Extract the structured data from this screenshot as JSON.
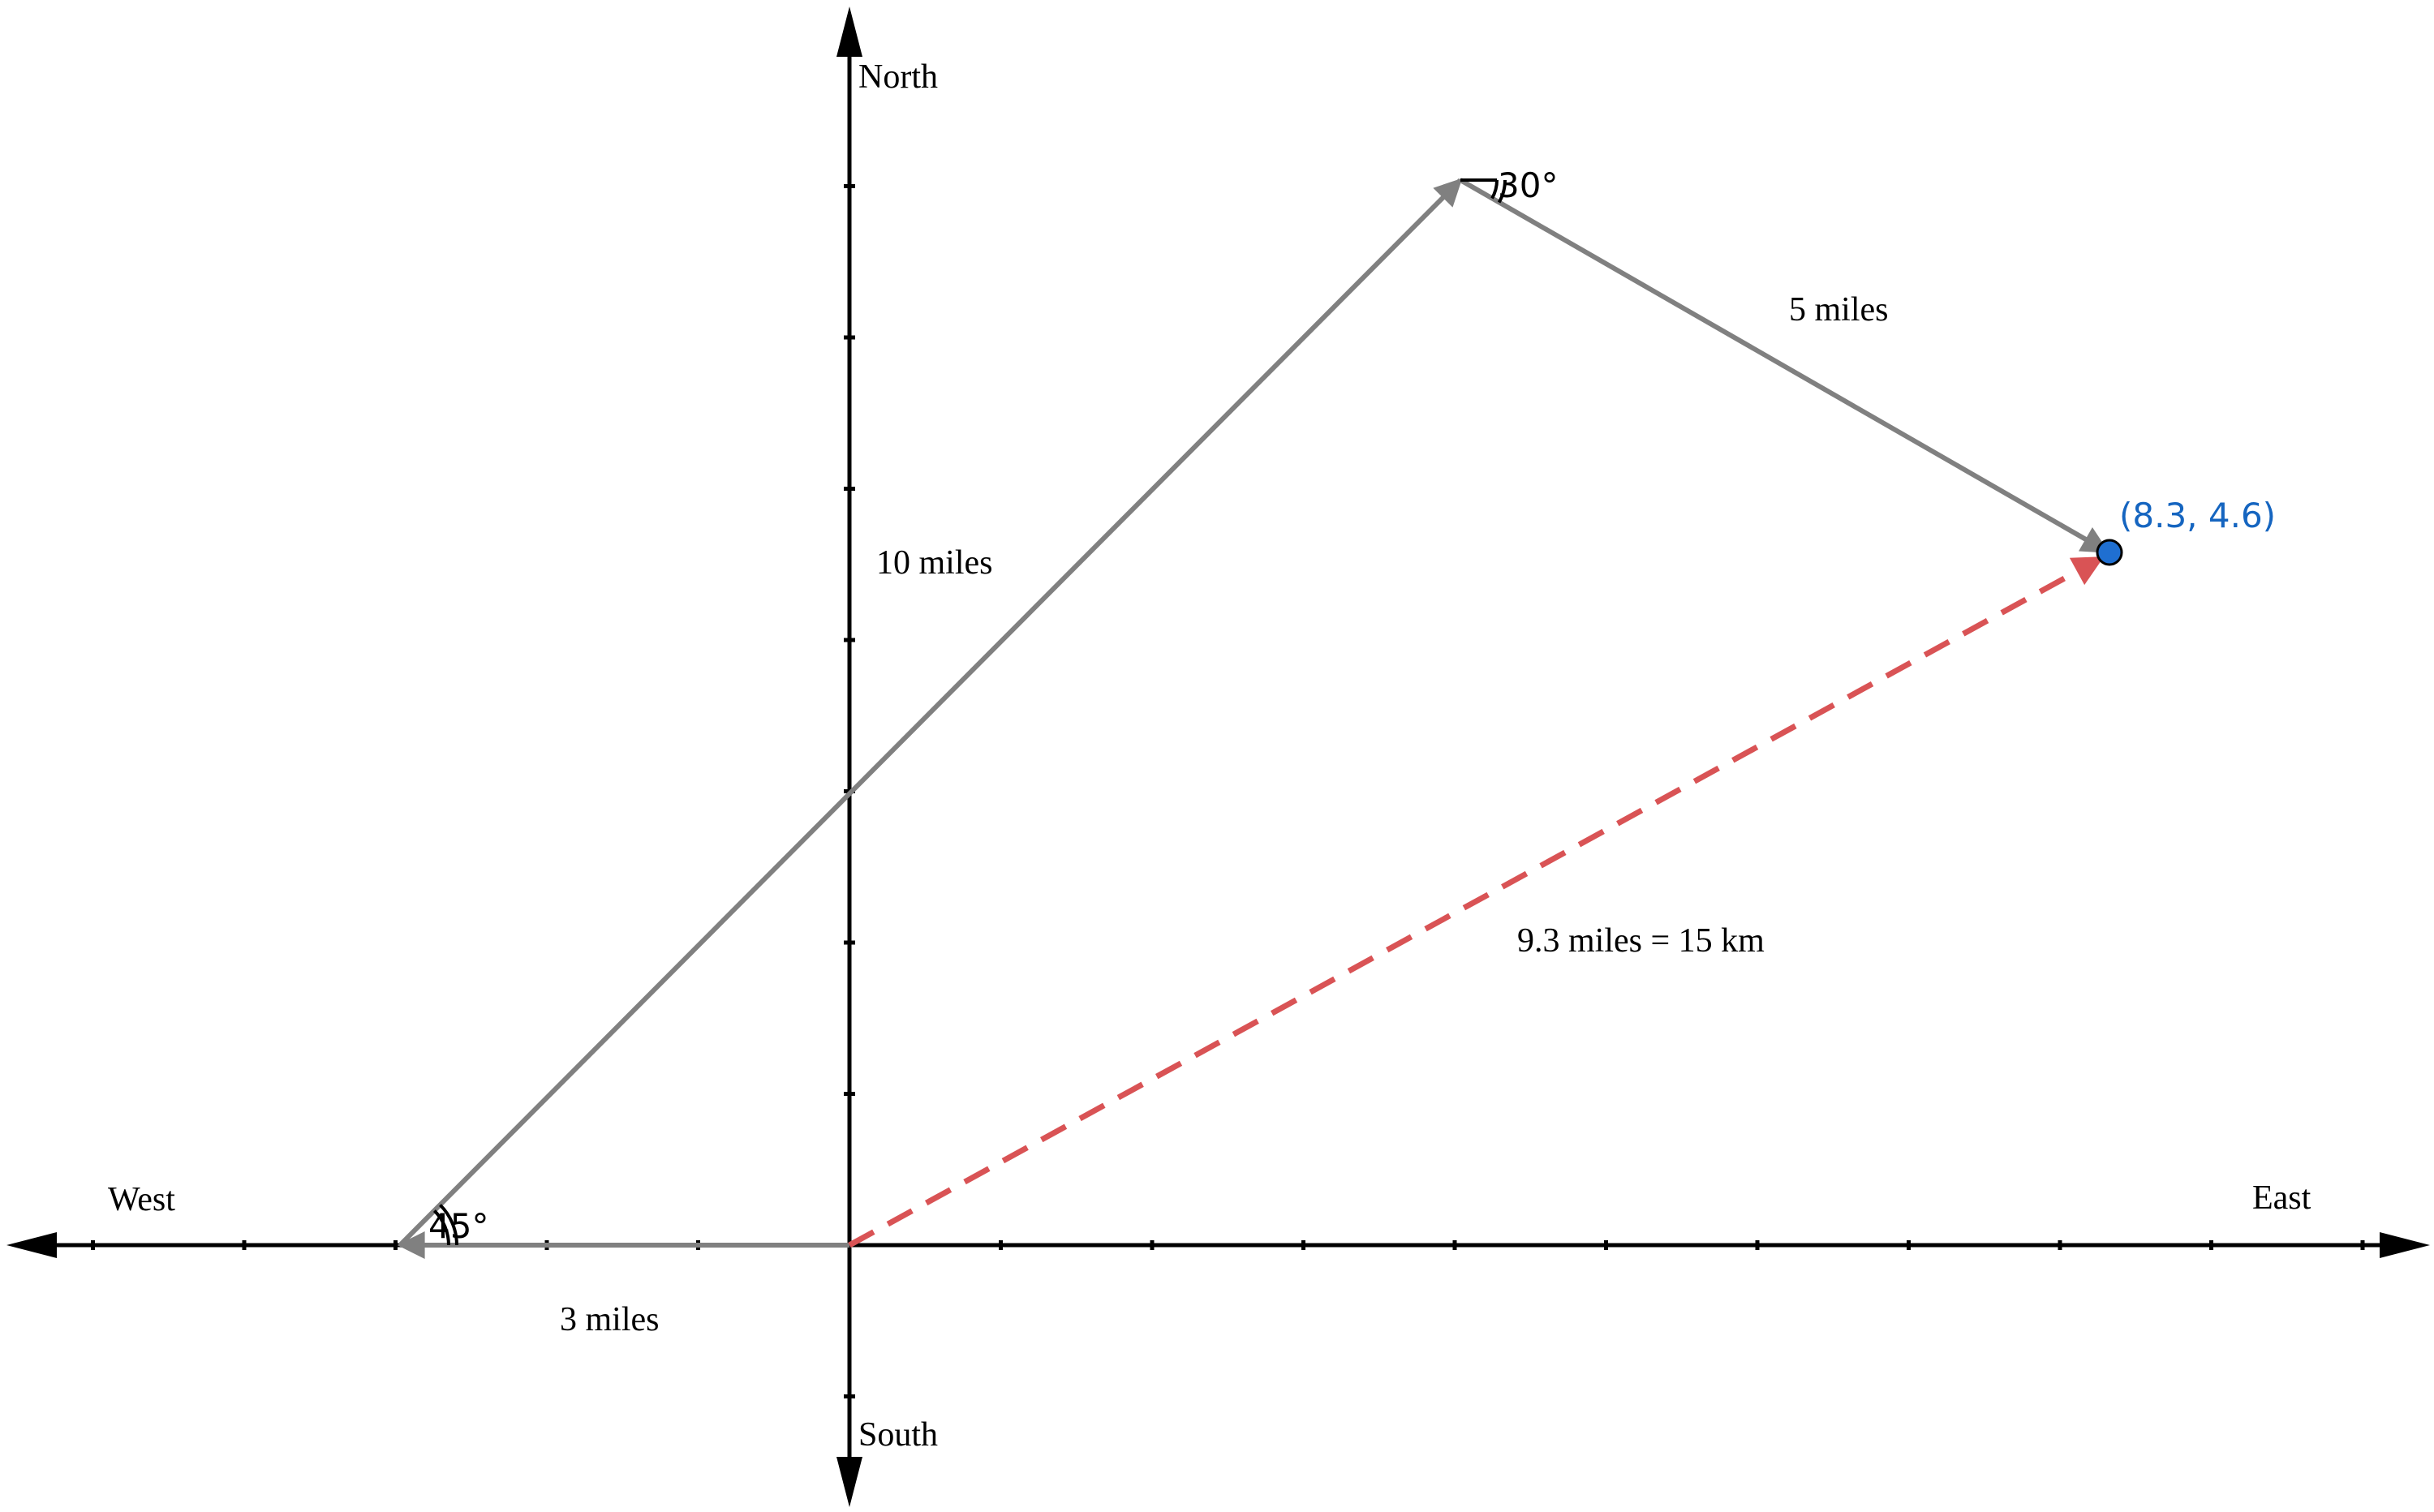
{
  "axes": {
    "north": "North",
    "south": "South",
    "west": "West",
    "east": "East"
  },
  "segments": {
    "leg1": {
      "label": "3 miles",
      "length_miles": 3,
      "heading": "West"
    },
    "leg2": {
      "label": "10 miles",
      "length_miles": 10,
      "angle_label": "45°",
      "angle_deg": 45
    },
    "leg3": {
      "label": "5 miles",
      "length_miles": 5,
      "angle_label": "30°",
      "angle_deg": 30
    },
    "resultant": {
      "label": "9.3 miles = 15 km",
      "style": "dashed"
    }
  },
  "point": {
    "label": "(8.3, 4.6)",
    "x": 8.3,
    "y": 4.6
  },
  "colors": {
    "axis": "#000000",
    "vector": "#808080",
    "resultant": "#d95355",
    "point_fill": "#1f6fd1",
    "point_label": "#1565c0"
  }
}
